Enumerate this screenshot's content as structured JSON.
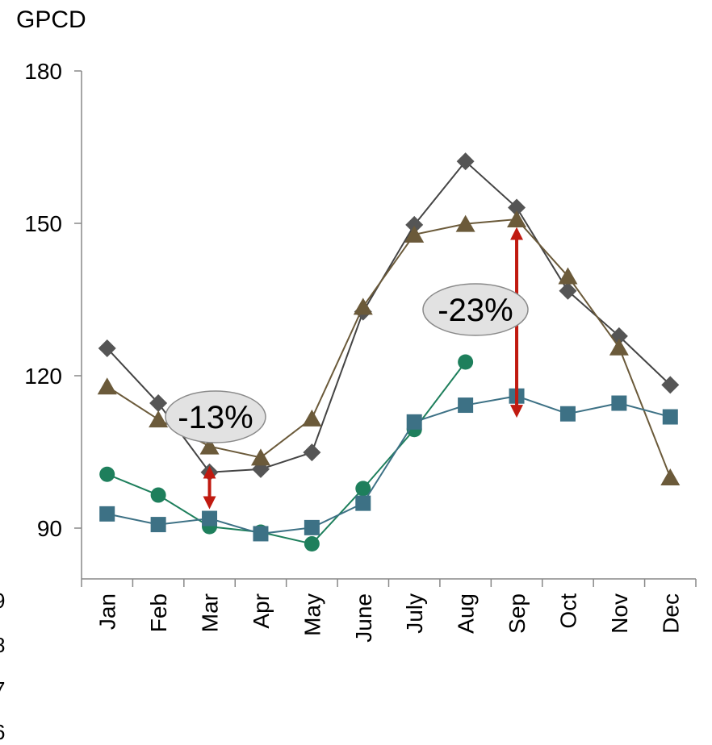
{
  "chart_data": {
    "type": "line",
    "title": "",
    "ylabel": "GPCD",
    "xlabel": "",
    "ylim": [
      80,
      180
    ],
    "yticks": [
      90,
      120,
      150,
      180
    ],
    "categories": [
      "Jan",
      "Feb",
      "Mar",
      "Apr",
      "May",
      "June",
      "July",
      "Aug",
      "Sep",
      "Oct",
      "Nov",
      "Dec"
    ],
    "grid": false,
    "legend_fragments": [
      "9",
      "8",
      "7",
      "6"
    ],
    "series": [
      {
        "marker": "diamond",
        "color": "#555555",
        "line_color": "#444444",
        "values": [
          125.4,
          114.6,
          101.0,
          101.6,
          104.9,
          132.6,
          149.7,
          162.2,
          153.1,
          136.7,
          127.8,
          118.2
        ]
      },
      {
        "marker": "triangle",
        "color": "#6b5a3a",
        "line_color": "#6b5a3a",
        "values": [
          117.9,
          111.4,
          106.1,
          103.9,
          111.6,
          133.6,
          147.8,
          149.9,
          150.8,
          139.6,
          125.6,
          100.0
        ]
      },
      {
        "marker": "circle",
        "color": "#1e7f5c",
        "line_color": "#1e7f5c",
        "values": [
          100.6,
          96.5,
          90.3,
          89.2,
          86.9,
          97.8,
          109.4,
          122.7,
          null,
          null,
          null,
          null
        ]
      },
      {
        "marker": "square",
        "color": "#3d7185",
        "line_color": "#3d7185",
        "values": [
          92.8,
          90.7,
          91.9,
          88.9,
          90.1,
          94.9,
          110.9,
          114.2,
          116.0,
          112.5,
          114.6,
          111.9
        ]
      }
    ],
    "annotations": [
      {
        "label": "-13%",
        "category": "Mar",
        "from": 101.0,
        "to": 95.0,
        "arrow_color": "#c01a10"
      },
      {
        "label": "-23%",
        "category": "Sep",
        "from": 148.0,
        "to": 113.0,
        "arrow_color": "#c01a10"
      }
    ]
  }
}
